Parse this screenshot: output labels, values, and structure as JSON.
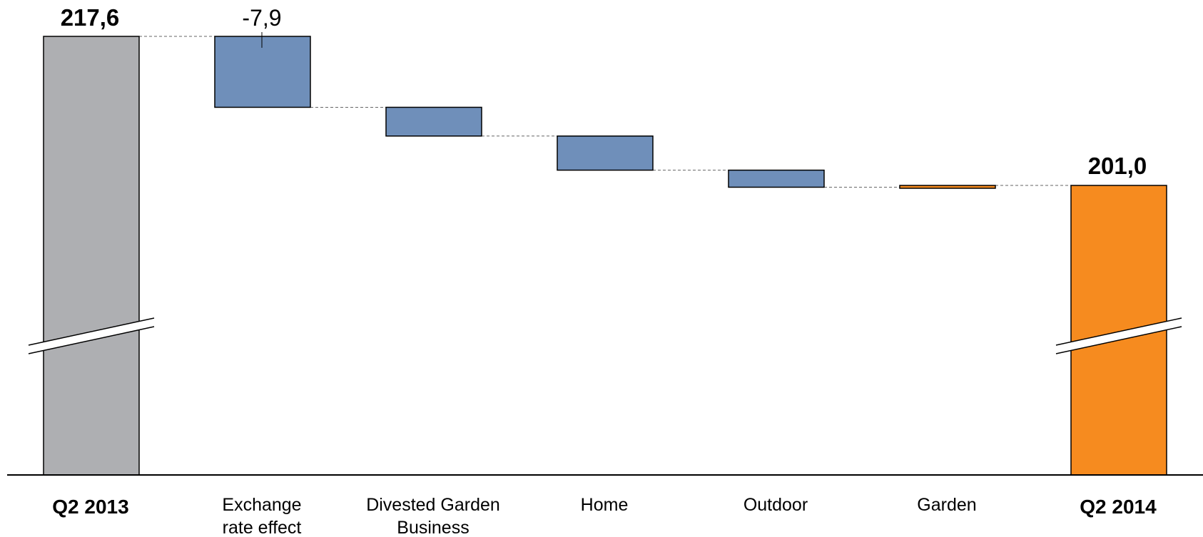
{
  "chart_data": {
    "type": "waterfall",
    "title": "",
    "xlabel": "",
    "ylabel": "",
    "broken_axis": true,
    "ylim_visible": [
      201.0,
      217.6
    ],
    "start": {
      "category": "Q2 2013",
      "value": 217.6,
      "label": "217,6",
      "color": "#AEAFB2"
    },
    "end": {
      "category": "Q2 2014",
      "value": 201.0,
      "label": "201,0",
      "color": "#F68B1F"
    },
    "steps": [
      {
        "category": "Exchange rate effect",
        "delta": -7.9,
        "label": "-7,9",
        "color": "#6F8FBA"
      },
      {
        "category": "Divested Garden Business",
        "delta": -3.2,
        "label": "",
        "color": "#6F8FBA"
      },
      {
        "category": "Home",
        "delta": -3.8,
        "label": "",
        "color": "#6F8FBA"
      },
      {
        "category": "Outdoor",
        "delta": -1.9,
        "label": "",
        "color": "#6F8FBA"
      },
      {
        "category": "Garden",
        "delta": 0.2,
        "label": "",
        "color": "#F68B1F"
      }
    ],
    "category_labels": [
      {
        "lines": [
          "Q2 2013"
        ],
        "bold": true
      },
      {
        "lines": [
          "Exchange",
          "rate effect"
        ],
        "bold": false
      },
      {
        "lines": [
          "Divested Garden",
          "Business"
        ],
        "bold": false
      },
      {
        "lines": [
          "Home"
        ],
        "bold": false
      },
      {
        "lines": [
          "Outdoor"
        ],
        "bold": false
      },
      {
        "lines": [
          "Garden"
        ],
        "bold": false
      },
      {
        "lines": [
          "Q2 2014"
        ],
        "bold": true
      }
    ]
  }
}
